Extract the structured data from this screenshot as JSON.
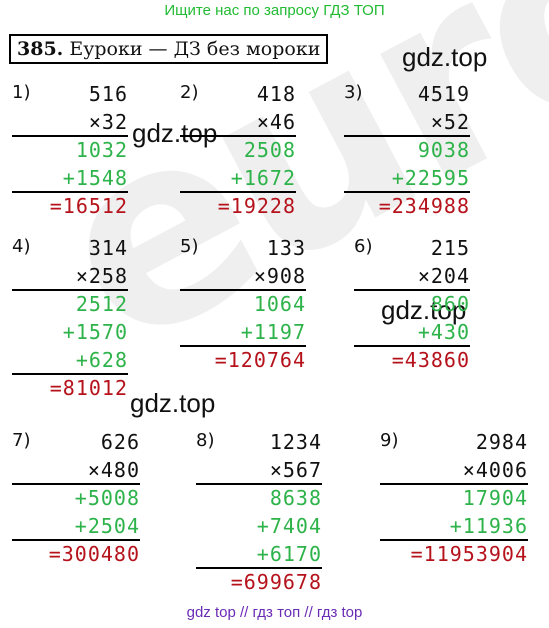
{
  "banner": "Ищите нас по запросу ГДЗ ТОП",
  "header": {
    "number": "385.",
    "text": " Еуроки — ДЗ без мороки"
  },
  "watermark": {
    "text": "gdz.top",
    "big": "euroki"
  },
  "footer": "gdz top // гдз топ // гдз top",
  "problems": [
    {
      "label": "1)",
      "a": "516",
      "b": "×32",
      "partials": [
        "1032",
        "+1548"
      ],
      "result": "=16512"
    },
    {
      "label": "2)",
      "a": "418",
      "b": "×46",
      "partials": [
        "2508",
        "+1672"
      ],
      "result": "=19228"
    },
    {
      "label": "3)",
      "a": "4519",
      "b": "×52",
      "partials": [
        "9038",
        "+22595"
      ],
      "result": "=234988"
    },
    {
      "label": "4)",
      "a": "314",
      "b": "×258",
      "partials": [
        "2512",
        "+1570",
        "+628"
      ],
      "result": "=81012"
    },
    {
      "label": "5)",
      "a": "133",
      "b": "×908",
      "partials": [
        "1064",
        "+1197"
      ],
      "result": "=120764"
    },
    {
      "label": "6)",
      "a": "215",
      "b": "×204",
      "partials": [
        "860",
        "+430"
      ],
      "result": "=43860"
    },
    {
      "label": "7)",
      "a": "626",
      "b": "×480",
      "partials": [
        "+5008",
        "+2504"
      ],
      "result": "=300480"
    },
    {
      "label": "8)",
      "a": "1234",
      "b": "×567",
      "partials": [
        "8638",
        "+7404",
        "+6170"
      ],
      "result": "=699678"
    },
    {
      "label": "9)",
      "a": "2984",
      "b": "×4006",
      "partials": [
        "17904",
        "+11936"
      ],
      "result": "=11953904"
    }
  ]
}
